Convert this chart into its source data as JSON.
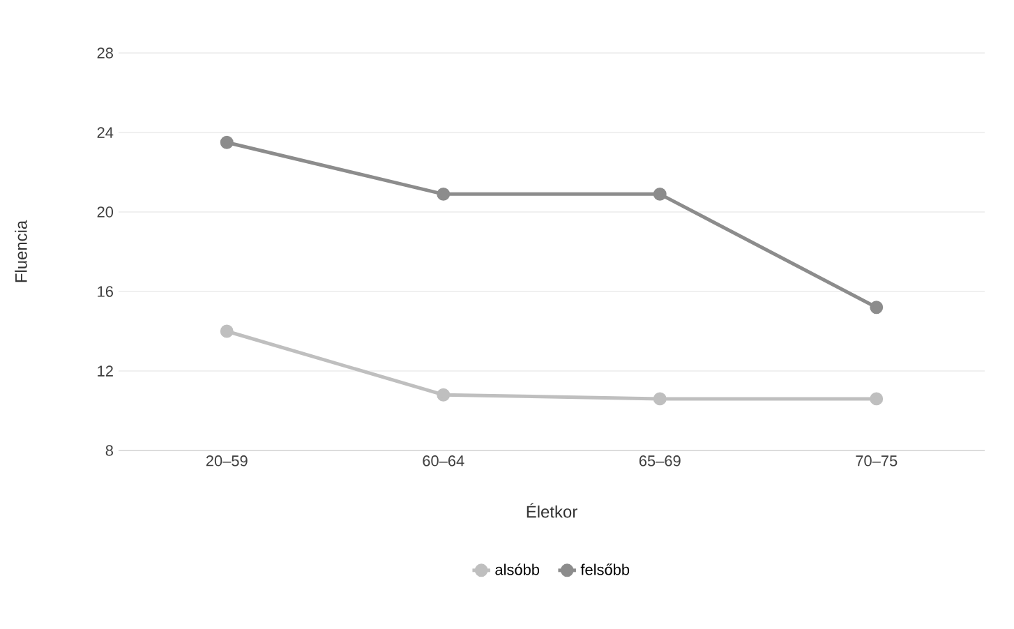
{
  "chart_data": {
    "type": "line",
    "xlabel": "Életkor",
    "ylabel": "Fluencia",
    "categories": [
      "20–59",
      "60–64",
      "65–69",
      "70–75"
    ],
    "series": [
      {
        "name": "alsóbb",
        "color": "#bfbfbf",
        "values": [
          14.0,
          10.8,
          10.6,
          10.6
        ]
      },
      {
        "name": "felsőbb",
        "color": "#8c8c8c",
        "values": [
          23.5,
          20.9,
          20.9,
          15.2
        ]
      }
    ],
    "ylim": [
      8,
      28
    ],
    "yticks": [
      8,
      12,
      16,
      20,
      24,
      28
    ],
    "grid": "y",
    "legend": "bottom",
    "marker": "circle",
    "line_style": "solid"
  }
}
